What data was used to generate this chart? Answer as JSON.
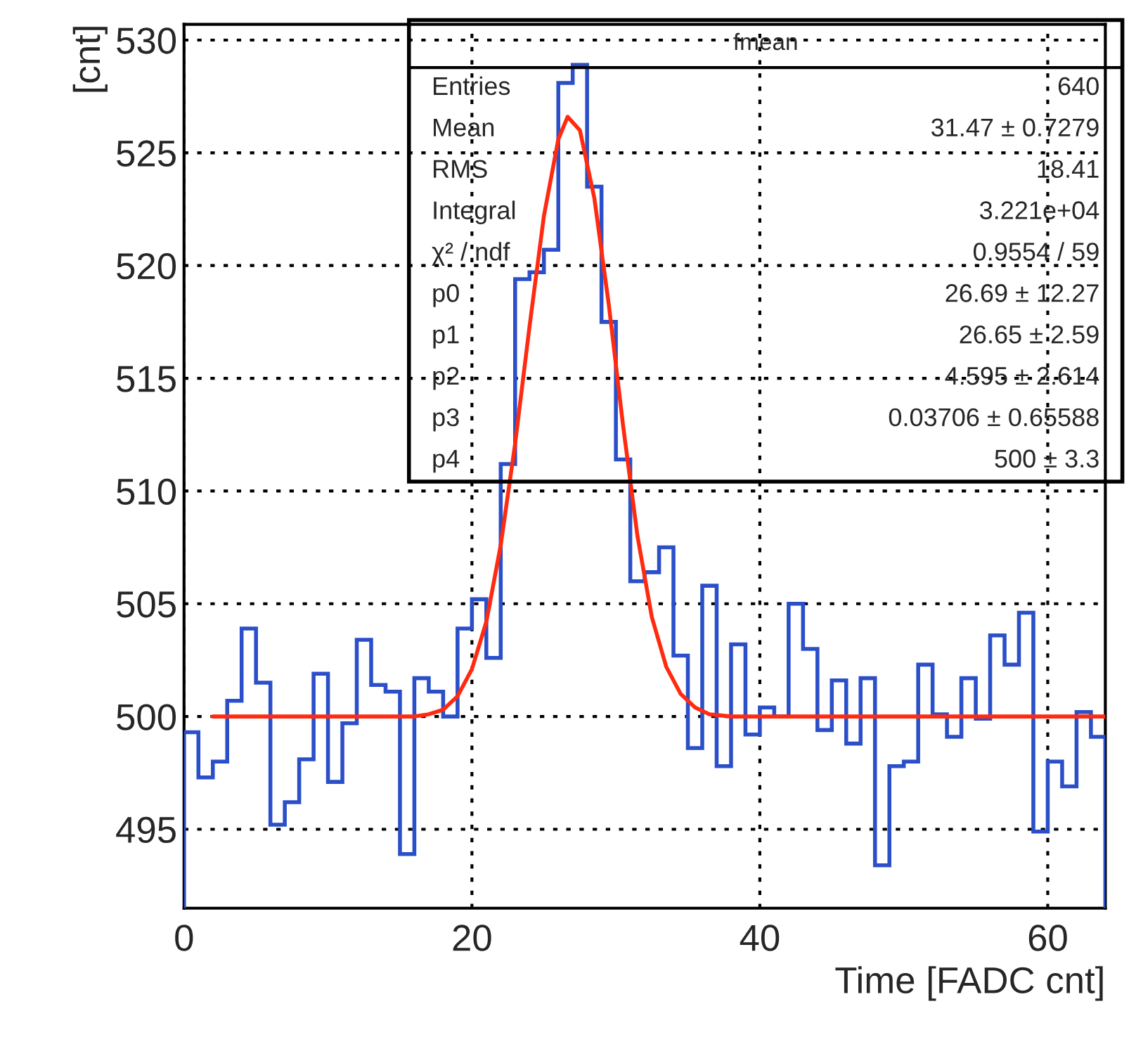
{
  "chart_data": {
    "type": "histogram",
    "xlabel": "Time [FADC cnt]",
    "ylabel": "[cnt]",
    "bins": [
      0,
      1,
      2,
      3,
      4,
      5,
      6,
      7,
      8,
      9,
      10,
      11,
      12,
      13,
      14,
      15,
      16,
      17,
      18,
      19,
      20,
      21,
      22,
      23,
      24,
      25,
      26,
      27,
      28,
      29,
      30,
      31,
      32,
      33,
      34,
      35,
      36,
      37,
      38,
      39,
      40,
      41,
      42,
      43,
      44,
      45,
      46,
      47,
      48,
      49,
      50,
      51,
      52,
      53,
      54,
      55,
      56,
      57,
      58,
      59,
      60,
      61,
      62,
      63,
      64
    ],
    "series": [
      {
        "color": "#2b4fc8",
        "values": [
          499.3,
          497.3,
          498.0,
          500.7,
          503.9,
          501.5,
          495.2,
          496.2,
          498.1,
          501.9,
          497.1,
          499.7,
          503.4,
          501.4,
          501.1,
          493.9,
          501.7,
          501.1,
          500.0,
          503.9,
          505.2,
          502.6,
          511.2,
          519.4,
          519.7,
          520.7,
          528.1,
          528.9,
          523.5,
          517.5,
          511.4,
          506.0,
          506.4,
          507.5,
          502.7,
          498.6,
          505.8,
          497.8,
          503.2,
          499.2,
          500.4,
          500.0,
          505.0,
          503.0,
          499.4,
          501.6,
          498.8,
          501.7,
          493.4,
          497.8,
          498.0,
          502.3,
          500.1,
          499.1,
          501.7,
          499.9,
          503.6,
          502.3,
          504.6,
          494.9,
          498.0,
          496.9,
          500.2,
          499.1
        ]
      },
      {
        "type": "line",
        "color": "#ff2a10",
        "x": [
          2,
          16,
          17,
          18,
          19,
          20,
          21,
          22,
          23,
          24,
          25,
          26,
          26.65,
          27.5,
          28.5,
          29.5,
          30.5,
          31.5,
          32.5,
          33.5,
          34.5,
          35.5,
          36.5,
          38,
          64
        ],
        "values": [
          500,
          500,
          500.1,
          500.3,
          500.9,
          502.1,
          504.2,
          507.6,
          512.1,
          517.3,
          522.2,
          525.6,
          526.6,
          526.0,
          523.0,
          518.3,
          512.9,
          508.0,
          504.4,
          502.2,
          501.0,
          500.4,
          500.1,
          500,
          500
        ]
      }
    ],
    "xlim": [
      0,
      64
    ],
    "xticks": [
      0,
      20,
      40,
      60
    ],
    "ylim": [
      491.5,
      530.7
    ],
    "yticks": [
      495,
      500,
      505,
      510,
      515,
      520,
      525,
      530
    ],
    "grid": true,
    "line_style": "solid",
    "annotations": [
      "fmean",
      "Entries",
      "640",
      "Mean",
      "31.47 ± 0.7279",
      "RMS",
      "18.41",
      "Integral",
      "3.221e+04",
      "χ² / ndf",
      "0.9554 / 59",
      "p0",
      "26.69 ± 12.27",
      "p1",
      "26.65 ± 2.59",
      "p2",
      "4.595 ± 2.614",
      "p3",
      "0.03706 ± 0.65588",
      "p4",
      "500 ± 3.3"
    ]
  }
}
